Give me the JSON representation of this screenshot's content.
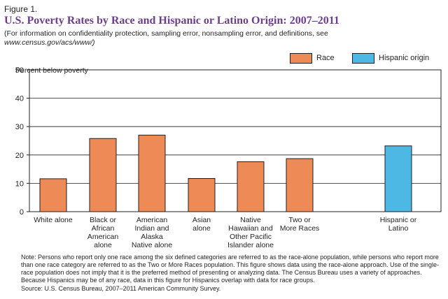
{
  "figure_label": "Figure 1.",
  "title": "U.S. Poverty Rates by Race and Hispanic or Latino Origin: 2007–2011",
  "subtitle_line1": "(For information on confidentiality protection, sampling error, nonsampling error, and definitions, see",
  "subtitle_line2": "www.census.gov/acs/www/)",
  "legend": [
    {
      "label": "Race",
      "color": "#ee8a55"
    },
    {
      "label": "Hispanic origin",
      "color": "#4cb8e3"
    }
  ],
  "chart_data": {
    "type": "bar",
    "ylabel": "Percent below poverty",
    "ylim": [
      0,
      50
    ],
    "yticks": [
      0,
      10,
      20,
      30,
      40,
      50
    ],
    "categories": [
      [
        "White alone"
      ],
      [
        "Black or",
        "African",
        "American",
        "alone"
      ],
      [
        "American",
        "Indian and",
        "Alaska",
        "Native alone"
      ],
      [
        "Asian",
        "alone"
      ],
      [
        "Native",
        "Hawaiian and",
        "Other Pacific",
        "Islander alone"
      ],
      [
        "Two or",
        "More Races"
      ],
      [
        "Hispanic or",
        "Latino"
      ]
    ],
    "values": [
      11.6,
      25.8,
      27.0,
      11.7,
      17.6,
      18.7,
      23.2
    ],
    "groups": [
      "Race",
      "Race",
      "Race",
      "Race",
      "Race",
      "Race",
      "Hispanic origin"
    ],
    "colors": {
      "Race": "#ee8a55",
      "Hispanic origin": "#4cb8e3"
    }
  },
  "footnote": "Note: Persons who report only one race among the six defined categories are referred to as the race-alone population, while persons who report more than one race category are referred to as the Two or More Races population. This figure shows data using the race-alone approach. Use of the single-race population does not imply that it is the preferred method of presenting or analyzing data. The Census Bureau uses a variety of approaches. Because Hispanics may be of any race, data in this figure for Hispanics overlap with data for race groups.",
  "source": "Source: U.S. Census Bureau, 2007–2011 American Community Survey."
}
